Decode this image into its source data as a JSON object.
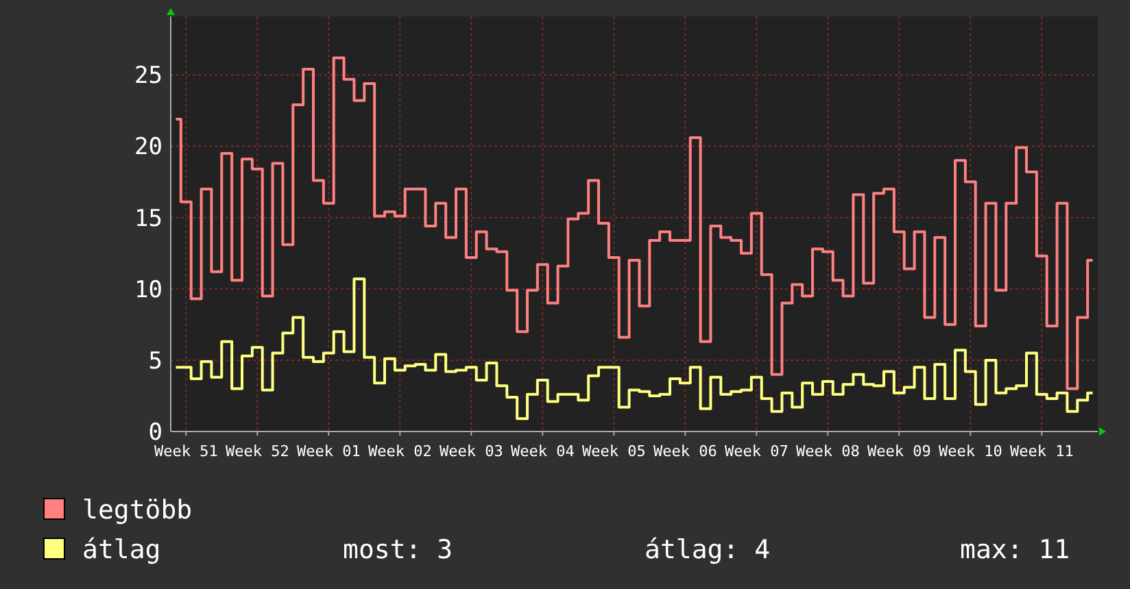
{
  "chart_data": {
    "type": "step",
    "categories": [
      null,
      "Week 51",
      null,
      null,
      null,
      null,
      null,
      null,
      "Week 52",
      null,
      null,
      null,
      null,
      null,
      null,
      "Week 01",
      null,
      null,
      null,
      null,
      null,
      null,
      "Week 02",
      null,
      null,
      null,
      null,
      null,
      null,
      "Week 03",
      null,
      null,
      null,
      null,
      null,
      null,
      "Week 04",
      null,
      null,
      null,
      null,
      null,
      null,
      "Week 05",
      null,
      null,
      null,
      null,
      null,
      null,
      "Week 06",
      null,
      null,
      null,
      null,
      null,
      null,
      "Week 07",
      null,
      null,
      null,
      null,
      null,
      null,
      "Week 08",
      null,
      null,
      null,
      null,
      null,
      null,
      "Week 09",
      null,
      null,
      null,
      null,
      null,
      null,
      "Week 10",
      null,
      null,
      null,
      null,
      null,
      null,
      "Week 11",
      null,
      null,
      null,
      null,
      null
    ],
    "series": [
      {
        "name": "legtöbb",
        "color": "#ff8080",
        "values": [
          21.9,
          16.1,
          9.3,
          17.0,
          11.2,
          19.5,
          10.6,
          19.1,
          18.4,
          9.5,
          18.8,
          13.1,
          22.9,
          25.4,
          17.6,
          16.0,
          26.2,
          24.7,
          23.2,
          24.4,
          15.1,
          15.4,
          15.1,
          17.0,
          17.0,
          14.4,
          16.0,
          13.6,
          17.0,
          12.2,
          14.0,
          12.8,
          12.6,
          9.9,
          7.0,
          9.9,
          11.7,
          9.0,
          11.6,
          14.9,
          15.3,
          17.6,
          14.6,
          12.2,
          6.6,
          12.0,
          8.8,
          13.4,
          14.0,
          13.4,
          13.4,
          20.6,
          6.3,
          14.4,
          13.6,
          13.4,
          12.5,
          15.3,
          11.0,
          4.0,
          9.0,
          10.3,
          9.5,
          12.8,
          12.6,
          10.6,
          9.5,
          16.6,
          10.4,
          16.7,
          17.0,
          14.0,
          11.4,
          14.0,
          8.0,
          13.6,
          7.5,
          19.0,
          17.5,
          7.4,
          16.0,
          9.9,
          16.0,
          19.9,
          18.2,
          12.3,
          7.4,
          16.0,
          3.0,
          8.0,
          12.0
        ]
      },
      {
        "name": "átlag",
        "color": "#ffff80",
        "values": [
          4.5,
          4.5,
          3.7,
          4.9,
          3.8,
          6.3,
          3.0,
          5.3,
          5.9,
          2.9,
          5.5,
          6.9,
          8.0,
          5.2,
          4.9,
          5.5,
          7.0,
          5.6,
          10.7,
          5.2,
          3.4,
          5.1,
          4.3,
          4.6,
          4.7,
          4.3,
          5.4,
          4.2,
          4.3,
          4.5,
          3.6,
          4.8,
          3.2,
          2.4,
          0.9,
          2.6,
          3.6,
          2.1,
          2.6,
          2.6,
          2.2,
          3.9,
          4.5,
          4.5,
          1.7,
          2.9,
          2.8,
          2.5,
          2.6,
          3.7,
          3.4,
          4.5,
          1.6,
          3.8,
          2.6,
          2.8,
          2.9,
          3.8,
          2.3,
          1.4,
          2.7,
          1.7,
          3.4,
          2.6,
          3.5,
          2.6,
          3.3,
          4.0,
          3.3,
          3.2,
          4.2,
          2.7,
          3.1,
          4.5,
          2.3,
          4.7,
          2.3,
          5.7,
          4.2,
          1.9,
          5.0,
          2.7,
          3.0,
          3.2,
          5.5,
          2.6,
          2.3,
          2.7,
          1.4,
          2.2,
          2.7
        ]
      }
    ],
    "ylim": [
      0,
      29.1
    ],
    "yticks": [
      0,
      5,
      10,
      15,
      20,
      25
    ],
    "grid": true,
    "legend": "bottom left",
    "annotations": [
      "most: 3",
      "átlag: 4",
      "max: 11"
    ]
  }
}
